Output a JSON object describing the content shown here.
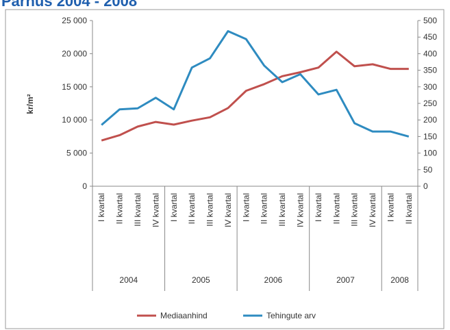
{
  "chart_data": {
    "type": "line",
    "title": "Pärnus 2004 - 2008",
    "y_label": "kr/m²",
    "categories": [
      "I kvartal",
      "II kvartal",
      "III kvartal",
      "IV kvartal",
      "I kvartal",
      "II kvartal",
      "III kvartal",
      "IV kvartal",
      "I kvartal",
      "II kvartal",
      "III kvartal",
      "IV kvartal",
      "I kvartal",
      "II kvartal",
      "III kvartal",
      "IV kvartal",
      "I kvartal",
      "II kvartal"
    ],
    "groups": [
      {
        "label": "2004",
        "count": 4
      },
      {
        "label": "2005",
        "count": 4
      },
      {
        "label": "2006",
        "count": 4
      },
      {
        "label": "2007",
        "count": 4
      },
      {
        "label": "2008",
        "count": 2
      }
    ],
    "series": [
      {
        "name": "Mediaanhind",
        "color": "#c0504d",
        "axis": "y",
        "values": [
          6900,
          7700,
          9000,
          9700,
          9300,
          9900,
          10400,
          11800,
          14400,
          15400,
          16600,
          17200,
          17900,
          20300,
          18100,
          18400,
          17700,
          17700
        ]
      },
      {
        "name": "Tehingute arv",
        "color": "#2e8bc0",
        "axis": "y2",
        "values": [
          185,
          232,
          235,
          267,
          232,
          358,
          386,
          468,
          444,
          364,
          314,
          338,
          277,
          291,
          190,
          165,
          165,
          150
        ]
      }
    ],
    "ylim": [
      0,
      25000
    ],
    "yticks": [
      0,
      {
        "value": 5000,
        "label": "5 000"
      },
      {
        "value": 10000,
        "label": "10 000"
      },
      {
        "value": 15000,
        "label": "15 000"
      },
      {
        "value": 20000,
        "label": "20 000"
      },
      {
        "value": 25000,
        "label": "25 000"
      }
    ],
    "y2lim": [
      0,
      500
    ],
    "y2ticks": [
      0,
      50,
      100,
      150,
      200,
      250,
      300,
      350,
      400,
      450,
      500
    ],
    "grid": false,
    "legend": "bottom"
  }
}
